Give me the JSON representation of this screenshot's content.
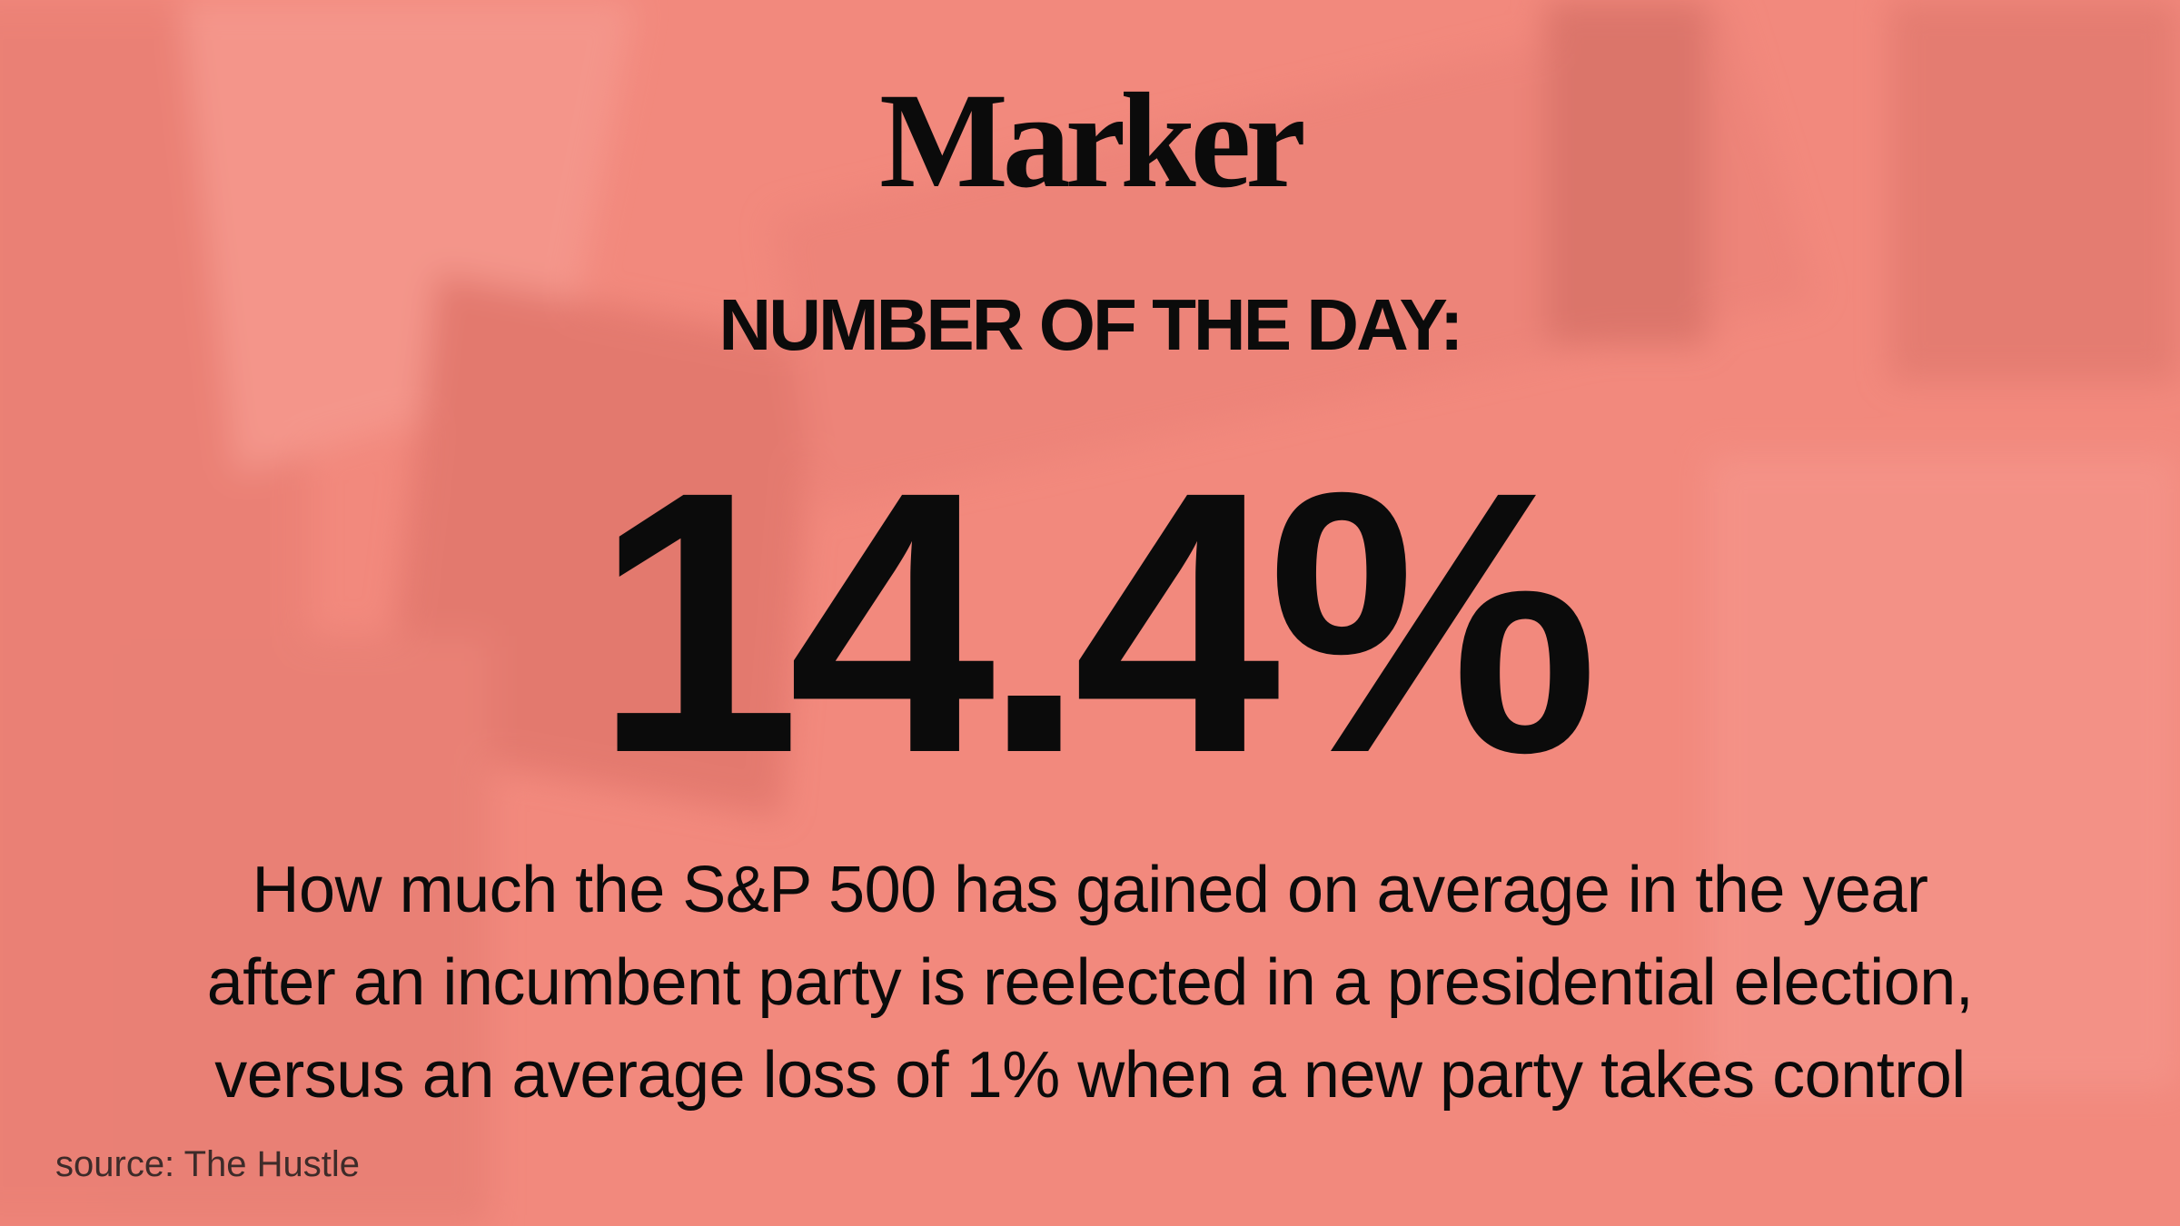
{
  "brand": "Marker",
  "heading": "NUMBER OF THE DAY:",
  "number": "14.4%",
  "description": [
    "How much the S&P 500 has gained on average in the year",
    "after an incumbent party is reelected in a presidential election,",
    "versus an average loss of 1% when a new party takes control"
  ],
  "source": "source: The Hustle"
}
